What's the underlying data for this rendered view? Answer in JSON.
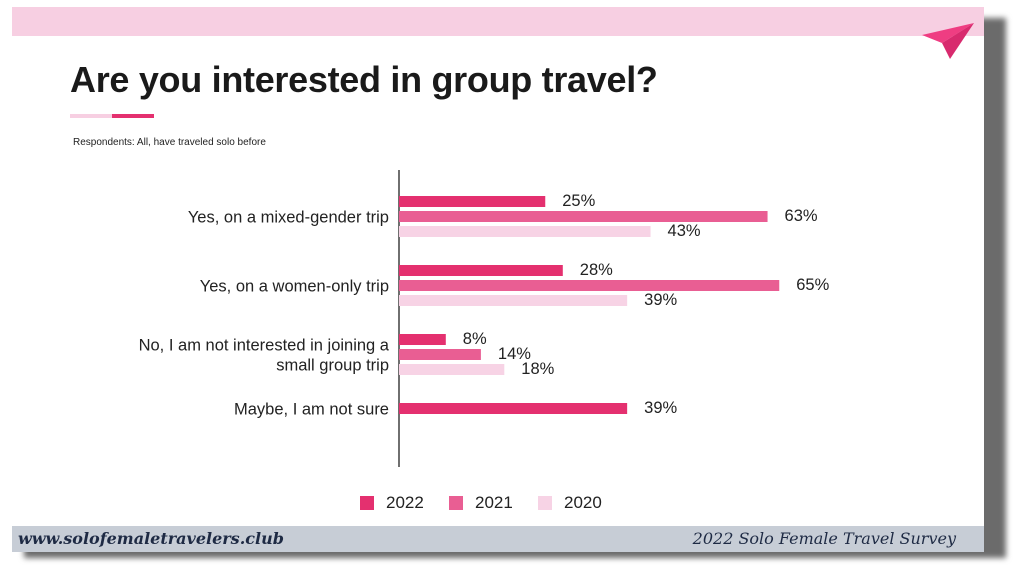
{
  "slide": {
    "title": "Are you interested in group travel?",
    "subtitle": "Respondents: All, have traveled solo before"
  },
  "footer": {
    "website": "www.solofemaletravelers.club",
    "survey_name": "2022 Solo Female Travel Survey"
  },
  "colors": {
    "series_2022": "#e4306f",
    "series_2021": "#e95e93",
    "series_2020": "#f7d3e5",
    "brand_pink": "#f7cfe2",
    "footer_band": "#c7cdd6"
  },
  "icons": {
    "logo": "paper-plane-icon"
  },
  "chart_data": {
    "type": "bar",
    "orientation": "horizontal",
    "title": "Are you interested in group travel?",
    "categories": [
      "Yes, on a mixed-gender trip",
      "Yes, on a women-only trip",
      "No, I am not interested in joining a small group trip",
      "Maybe, I am not sure"
    ],
    "category_lines": [
      [
        "Yes, on a mixed-gender trip"
      ],
      [
        "Yes, on a women-only trip"
      ],
      [
        "No, I am not interested in joining a",
        "small group trip"
      ],
      [
        "Maybe, I am not sure"
      ]
    ],
    "series": [
      {
        "name": "2022",
        "values": [
          25,
          28,
          8,
          39
        ],
        "color": "#e4306f"
      },
      {
        "name": "2021",
        "values": [
          63,
          65,
          14,
          null
        ],
        "color": "#e95e93"
      },
      {
        "name": "2020",
        "values": [
          43,
          39,
          18,
          null
        ],
        "color": "#f7d3e5"
      }
    ],
    "value_suffix": "%",
    "xlim": [
      0,
      100
    ],
    "grid": false,
    "legend_position": "bottom"
  }
}
